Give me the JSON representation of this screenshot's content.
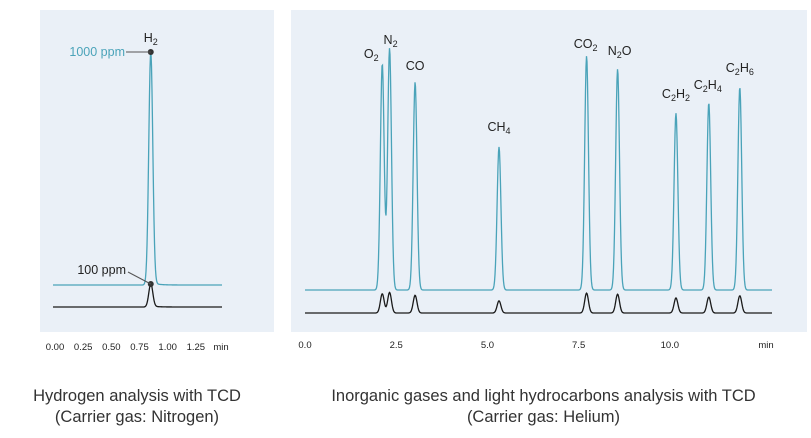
{
  "colors": {
    "series_high": "#4aa3b9",
    "series_low": "#1a1a1a",
    "panel_background": "#eaf0f7",
    "annotation_text": "#4aa3b9"
  },
  "chart_data": [
    {
      "type": "line",
      "name_hint": "left-panel",
      "xunit": "min",
      "xlim": [
        0.0,
        1.5
      ],
      "xticks": [
        0.0,
        0.25,
        0.5,
        0.75,
        1.0,
        1.25
      ],
      "xtick_labels": [
        "0.00",
        "0.25",
        "0.50",
        "0.75",
        "1.00",
        "1.25"
      ],
      "xunit_label": "min",
      "grid": false,
      "peaks": [
        {
          "label": "H",
          "sub": "2",
          "time": 0.85
        }
      ],
      "annotations": [
        {
          "text": "1000 ppm",
          "series": 0,
          "time": 0.85
        },
        {
          "text": "100 ppm",
          "series": 1,
          "time": 0.85
        }
      ],
      "series": [
        {
          "concentration": "1000 ppm",
          "color": "#4aa3b9",
          "peaks": [
            {
              "time": 0.85,
              "height": 0.92
            }
          ],
          "tail": true
        },
        {
          "concentration": "100 ppm",
          "color": "#1a1a1a",
          "peaks": [
            {
              "time": 0.85,
              "height": 0.09
            }
          ],
          "tail": true
        }
      ],
      "caption_line1": "Hydrogen analysis with TCD",
      "caption_line2": "(Carrier gas: Nitrogen)"
    },
    {
      "type": "line",
      "name_hint": "right-panel",
      "xunit": "min",
      "xlim": [
        0.0,
        12.8
      ],
      "xticks": [
        0.0,
        2.5,
        5.0,
        7.5,
        10.0
      ],
      "xtick_labels": [
        "0.0",
        "2.5",
        "5.0",
        "7.5",
        "10.0"
      ],
      "xunit_label": "min",
      "grid": false,
      "peaks": [
        {
          "parts": [
            {
              "t": "O"
            },
            {
              "t": "2",
              "sub": true
            }
          ],
          "time": 2.2,
          "height": 0.87
        },
        {
          "parts": [
            {
              "t": "N"
            },
            {
              "t": "2",
              "sub": true
            }
          ],
          "time": 2.4,
          "height": 0.93
        },
        {
          "parts": [
            {
              "t": "CO"
            }
          ],
          "time": 3.1,
          "height": 0.8
        },
        {
          "parts": [
            {
              "t": "CH"
            },
            {
              "t": "4",
              "sub": true
            }
          ],
          "time": 5.4,
          "height": 0.55
        },
        {
          "parts": [
            {
              "t": "CO"
            },
            {
              "t": "2",
              "sub": true
            }
          ],
          "time": 7.8,
          "height": 0.9
        },
        {
          "parts": [
            {
              "t": "N"
            },
            {
              "t": "2",
              "sub": true
            },
            {
              "t": "O"
            }
          ],
          "time": 8.65,
          "height": 0.85
        },
        {
          "parts": [
            {
              "t": "C"
            },
            {
              "t": "2",
              "sub": true
            },
            {
              "t": "H"
            },
            {
              "t": "2",
              "sub": true
            }
          ],
          "time": 10.25,
          "height": 0.68
        },
        {
          "parts": [
            {
              "t": "C"
            },
            {
              "t": "2",
              "sub": true
            },
            {
              "t": "H"
            },
            {
              "t": "4",
              "sub": true
            }
          ],
          "time": 11.15,
          "height": 0.72
        },
        {
          "parts": [
            {
              "t": "C"
            },
            {
              "t": "2",
              "sub": true
            },
            {
              "t": "H"
            },
            {
              "t": "6",
              "sub": true
            }
          ],
          "time": 12.0,
          "height": 0.78
        }
      ],
      "series": [
        {
          "color": "#4aa3b9",
          "scale": 1.0
        },
        {
          "color": "#1a1a1a",
          "scale": 0.085
        }
      ],
      "caption_line1": "Inorganic gases and light hydrocarbons analysis with TCD",
      "caption_line2": "(Carrier gas: Helium)"
    }
  ]
}
